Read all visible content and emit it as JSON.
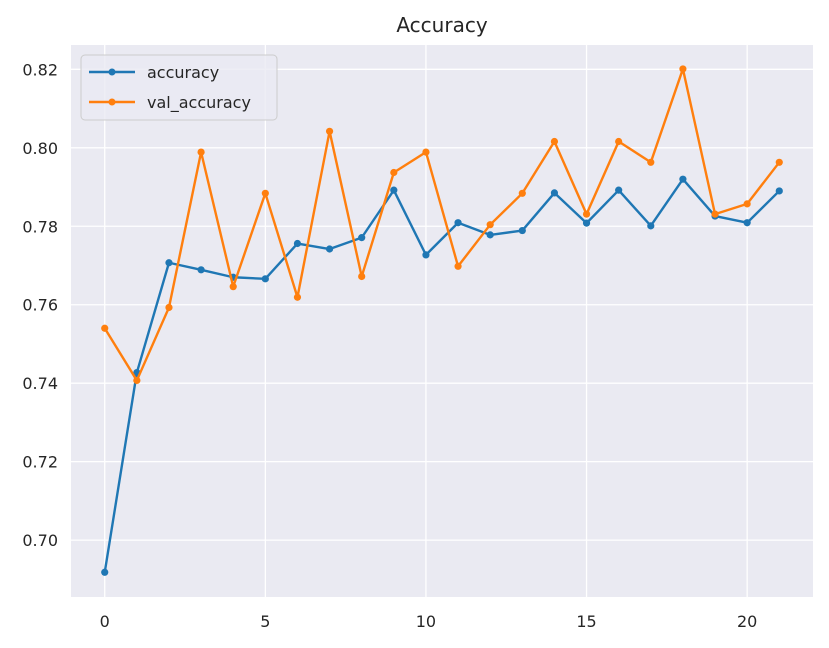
{
  "chart_data": {
    "type": "line",
    "title": "Accuracy",
    "xlabel": "",
    "ylabel": "",
    "xlim": [
      -1.05,
      22.05
    ],
    "ylim": [
      0.6855,
      0.8262
    ],
    "xticks": [
      0,
      5,
      10,
      15,
      20
    ],
    "xtick_labels": [
      "0",
      "5",
      "10",
      "15",
      "20"
    ],
    "yticks": [
      0.7,
      0.72,
      0.74,
      0.76,
      0.78,
      0.8,
      0.82
    ],
    "ytick_labels": [
      "0.70",
      "0.72",
      "0.74",
      "0.76",
      "0.78",
      "0.80",
      "0.82"
    ],
    "grid": true,
    "legend_position": "top-left",
    "x": [
      0,
      1,
      2,
      3,
      4,
      5,
      6,
      7,
      8,
      9,
      10,
      11,
      12,
      13,
      14,
      15,
      16,
      17,
      18,
      19,
      20,
      21
    ],
    "series": [
      {
        "name": "accuracy",
        "color": "#1f77b4",
        "values": [
          0.6918,
          0.7427,
          0.7707,
          0.7689,
          0.767,
          0.7666,
          0.7756,
          0.7742,
          0.7771,
          0.7892,
          0.7727,
          0.7809,
          0.7778,
          0.7789,
          0.7885,
          0.7808,
          0.7892,
          0.7801,
          0.792,
          0.7826,
          0.7809,
          0.789
        ]
      },
      {
        "name": "val_accuracy",
        "color": "#ff7f0e",
        "values": [
          0.754,
          0.7407,
          0.7593,
          0.7989,
          0.7646,
          0.7884,
          0.7619,
          0.8042,
          0.7672,
          0.7937,
          0.7989,
          0.7698,
          0.7804,
          0.7884,
          0.8016,
          0.7831,
          0.8016,
          0.7963,
          0.8201,
          0.7831,
          0.7857,
          0.7963
        ]
      }
    ]
  }
}
